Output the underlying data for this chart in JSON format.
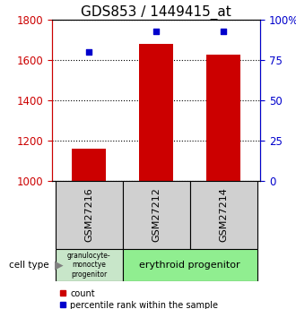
{
  "title": "GDS853 / 1449415_at",
  "samples": [
    "GSM27216",
    "GSM27212",
    "GSM27214"
  ],
  "counts": [
    1160,
    1680,
    1630
  ],
  "percentiles": [
    80,
    93,
    93
  ],
  "ylim_left": [
    1000,
    1800
  ],
  "ylim_right": [
    0,
    100
  ],
  "yticks_left": [
    1000,
    1200,
    1400,
    1600,
    1800
  ],
  "yticks_right": [
    0,
    25,
    50,
    75,
    100
  ],
  "ytick_right_labels": [
    "0",
    "25",
    "50",
    "75",
    "100%"
  ],
  "bar_color": "#cc0000",
  "dot_color": "#0000cc",
  "bar_width": 0.5,
  "granulocyte_text": "granulocyte-\nmonoctye\nprogenitor",
  "erythroid_text": "erythroid progenitor",
  "sample_box_color": "#d0d0d0",
  "granulocyte_box_color": "#c8e6c9",
  "erythroid_box_color": "#90EE90",
  "title_fontsize": 11,
  "tick_fontsize": 8.5,
  "legend_fontsize": 7,
  "cell_type_fontsize": 7
}
